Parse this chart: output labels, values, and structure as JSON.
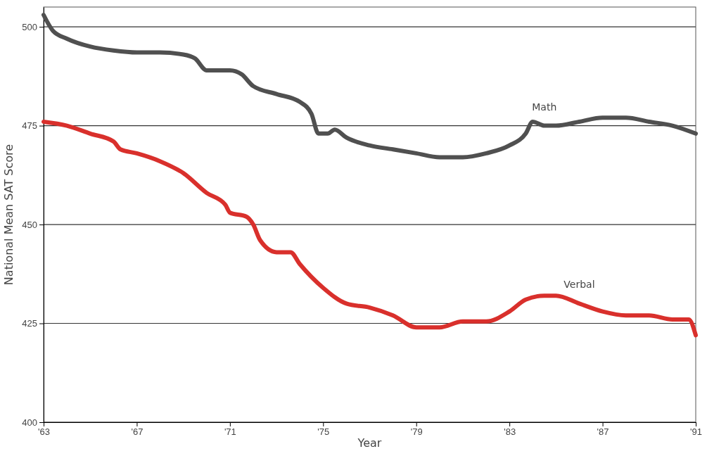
{
  "chart_data": {
    "type": "line",
    "xlabel": "Year",
    "ylabel": "National Mean SAT Score",
    "xlim": [
      1963,
      1991
    ],
    "xticks": [
      {
        "value": 1963,
        "label": "'63"
      },
      {
        "value": 1967,
        "label": "'67"
      },
      {
        "value": 1971,
        "label": "'71"
      },
      {
        "value": 1975,
        "label": "'75"
      },
      {
        "value": 1979,
        "label": "'79"
      },
      {
        "value": 1983,
        "label": "'83"
      },
      {
        "value": 1987,
        "label": "'87"
      },
      {
        "value": 1991,
        "label": "'91"
      }
    ],
    "ylim": [
      400,
      505
    ],
    "yticks": [
      400,
      425,
      450,
      475,
      500
    ],
    "grid": "y",
    "marker": "none",
    "line_style": "solid",
    "series": [
      {
        "name": "Math",
        "color": "#505050",
        "x": [
          1963,
          1963.4,
          1964,
          1965,
          1966,
          1967,
          1968,
          1969,
          1969.5,
          1970,
          1971,
          1971.5,
          1972,
          1973,
          1974,
          1974.5,
          1974.8,
          1975.2,
          1975.5,
          1976,
          1977,
          1978,
          1979,
          1980,
          1981,
          1982,
          1983,
          1983.7,
          1984,
          1984.5,
          1985,
          1986,
          1987,
          1988,
          1989,
          1990,
          1991
        ],
        "values": [
          503,
          499,
          497,
          495,
          494,
          493.5,
          493.5,
          493,
          492,
          489,
          489,
          488,
          485,
          483,
          481,
          478,
          473,
          473,
          474,
          472,
          470,
          469,
          468,
          467,
          467,
          468,
          470,
          473,
          476,
          475,
          475,
          476,
          477,
          477,
          476,
          475,
          473
        ]
      },
      {
        "name": "Verbal",
        "color": "#d9302c",
        "x": [
          1963,
          1964,
          1965,
          1966,
          1966.3,
          1967,
          1968,
          1969,
          1970,
          1970.8,
          1971,
          1971.7,
          1972,
          1972.3,
          1973,
          1973.6,
          1974,
          1975,
          1976,
          1977,
          1978,
          1979,
          1980,
          1981,
          1982,
          1983,
          1983.7,
          1984.5,
          1985,
          1986,
          1987,
          1988,
          1988.5,
          1989,
          1990,
          1990.7,
          1991
        ],
        "values": [
          476,
          475,
          473,
          471,
          469,
          468,
          466,
          463,
          458,
          455,
          453,
          452,
          450,
          446,
          443,
          443,
          440,
          434,
          430,
          429,
          427,
          424,
          424,
          425.5,
          425.5,
          428,
          431,
          432,
          432,
          430,
          428,
          427,
          427,
          427,
          426,
          426,
          422
        ]
      }
    ]
  }
}
